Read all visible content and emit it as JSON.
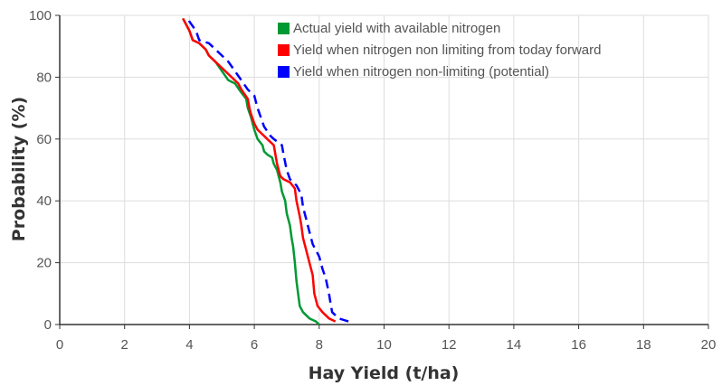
{
  "chart_data": {
    "type": "line",
    "title": "",
    "xlabel": "Hay Yield (t/ha)",
    "ylabel": "Probability (%)",
    "xlim": [
      0,
      20
    ],
    "ylim": [
      0,
      100
    ],
    "xticks": [
      0,
      2,
      4,
      6,
      8,
      10,
      12,
      14,
      16,
      18,
      20
    ],
    "yticks": [
      0,
      20,
      40,
      60,
      80,
      100
    ],
    "grid": true,
    "legend_position": "top-right",
    "series": [
      {
        "name": "Actual yield with available nitrogen",
        "color": "#009933",
        "style": "solid",
        "points": [
          [
            8.0,
            0
          ],
          [
            7.9,
            1
          ],
          [
            7.7,
            2
          ],
          [
            7.5,
            4
          ],
          [
            7.4,
            6
          ],
          [
            7.35,
            10
          ],
          [
            7.3,
            14
          ],
          [
            7.25,
            20
          ],
          [
            7.2,
            25
          ],
          [
            7.15,
            28
          ],
          [
            7.1,
            32
          ],
          [
            7.0,
            36
          ],
          [
            6.95,
            40
          ],
          [
            6.85,
            43
          ],
          [
            6.8,
            46
          ],
          [
            6.7,
            50
          ],
          [
            6.6,
            52
          ],
          [
            6.55,
            54
          ],
          [
            6.4,
            55
          ],
          [
            6.3,
            56
          ],
          [
            6.25,
            58
          ],
          [
            6.1,
            60
          ],
          [
            6.0,
            63
          ],
          [
            5.9,
            67
          ],
          [
            5.8,
            70
          ],
          [
            5.75,
            73
          ],
          [
            5.6,
            75
          ],
          [
            5.4,
            78
          ],
          [
            5.2,
            79
          ],
          [
            5.0,
            82
          ],
          [
            4.8,
            85
          ],
          [
            4.6,
            87
          ],
          [
            4.5,
            89
          ],
          [
            4.3,
            91
          ],
          [
            4.1,
            92
          ],
          [
            4.0,
            95
          ],
          [
            3.8,
            99
          ]
        ]
      },
      {
        "name": "Yield when nitrogen non limiting from today forward",
        "color": "#ff0000",
        "style": "solid",
        "points": [
          [
            8.5,
            1
          ],
          [
            8.3,
            2
          ],
          [
            8.1,
            4
          ],
          [
            7.95,
            6
          ],
          [
            7.85,
            10
          ],
          [
            7.8,
            16
          ],
          [
            7.7,
            20
          ],
          [
            7.6,
            24
          ],
          [
            7.5,
            28
          ],
          [
            7.45,
            32
          ],
          [
            7.4,
            35
          ],
          [
            7.3,
            40
          ],
          [
            7.25,
            44
          ],
          [
            7.1,
            46
          ],
          [
            6.9,
            47
          ],
          [
            6.8,
            48
          ],
          [
            6.7,
            52
          ],
          [
            6.65,
            55
          ],
          [
            6.6,
            58
          ],
          [
            6.4,
            60
          ],
          [
            6.3,
            61
          ],
          [
            6.1,
            63
          ],
          [
            6.0,
            65
          ],
          [
            5.9,
            68
          ],
          [
            5.85,
            70
          ],
          [
            5.8,
            73
          ],
          [
            5.6,
            76
          ],
          [
            5.5,
            78
          ],
          [
            5.3,
            80
          ],
          [
            5.0,
            83
          ],
          [
            4.8,
            85
          ],
          [
            4.6,
            87
          ],
          [
            4.5,
            89
          ],
          [
            4.3,
            91
          ],
          [
            4.1,
            92
          ],
          [
            4.0,
            95
          ],
          [
            3.8,
            99
          ]
        ]
      },
      {
        "name": "Yield when nitrogen non-limiting (potential)",
        "color": "#0000ff",
        "style": "dashed",
        "points": [
          [
            8.9,
            1
          ],
          [
            8.6,
            2
          ],
          [
            8.4,
            4
          ],
          [
            8.35,
            7
          ],
          [
            8.3,
            10
          ],
          [
            8.2,
            15
          ],
          [
            8.1,
            18
          ],
          [
            8.0,
            22
          ],
          [
            7.8,
            26
          ],
          [
            7.7,
            30
          ],
          [
            7.6,
            34
          ],
          [
            7.5,
            38
          ],
          [
            7.45,
            42
          ],
          [
            7.3,
            45
          ],
          [
            7.1,
            47
          ],
          [
            7.0,
            50
          ],
          [
            6.9,
            55
          ],
          [
            6.85,
            58
          ],
          [
            6.6,
            60
          ],
          [
            6.5,
            61
          ],
          [
            6.3,
            64
          ],
          [
            6.2,
            67
          ],
          [
            6.1,
            70
          ],
          [
            6.0,
            74
          ],
          [
            5.8,
            76
          ],
          [
            5.6,
            79
          ],
          [
            5.4,
            82
          ],
          [
            5.2,
            85
          ],
          [
            5.0,
            87
          ],
          [
            4.8,
            89
          ],
          [
            4.6,
            91
          ],
          [
            4.3,
            92
          ],
          [
            4.2,
            95
          ],
          [
            4.0,
            98
          ],
          [
            3.95,
            100
          ]
        ]
      }
    ]
  }
}
